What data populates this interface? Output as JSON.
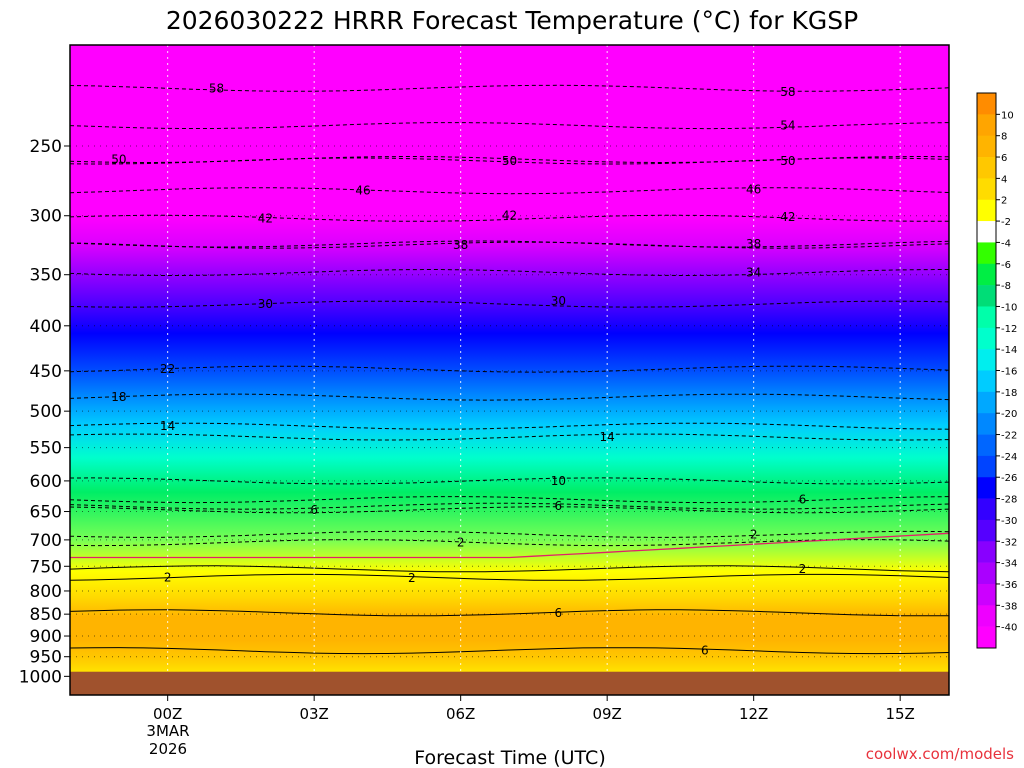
{
  "chart_data": {
    "type": "heatmap",
    "title": "2026030222 HRRR Forecast Temperature (°C) for KGSP",
    "xlabel": "Forecast Time (UTC)",
    "ylabel": "",
    "credit": "coolwx.com/models",
    "x_range_hours": [
      -2,
      16
    ],
    "y_range_hpa": [
      1050,
      192
    ],
    "x_ticks": [
      {
        "h": 0,
        "label": "00Z"
      },
      {
        "h": 3,
        "label": "03Z"
      },
      {
        "h": 6,
        "label": "06Z"
      },
      {
        "h": 9,
        "label": "09Z"
      },
      {
        "h": 12,
        "label": "12Z"
      },
      {
        "h": 15,
        "label": "15Z"
      }
    ],
    "date_label": [
      "3MAR",
      "2026"
    ],
    "y_ticks": [
      250,
      300,
      350,
      400,
      450,
      500,
      550,
      600,
      650,
      700,
      750,
      800,
      850,
      900,
      950,
      1000
    ],
    "ground_hpa": 988,
    "ground_color": "#a0522d",
    "temperature_levels": [
      {
        "p": 195,
        "t": -62
      },
      {
        "p": 215,
        "t": -58
      },
      {
        "p": 235,
        "t": -54
      },
      {
        "p": 258,
        "t": -50
      },
      {
        "p": 280,
        "t": -46
      },
      {
        "p": 300,
        "t": -42
      },
      {
        "p": 323,
        "t": -38
      },
      {
        "p": 348,
        "t": -34
      },
      {
        "p": 375,
        "t": -30
      },
      {
        "p": 408,
        "t": -26
      },
      {
        "p": 445,
        "t": -22
      },
      {
        "p": 480,
        "t": -18
      },
      {
        "p": 518,
        "t": -14
      },
      {
        "p": 565,
        "t": -10
      },
      {
        "p": 618,
        "t": -6
      },
      {
        "p": 700,
        "t": -2
      },
      {
        "p": 760,
        "t": 2
      },
      {
        "p": 815,
        "t": 4
      },
      {
        "p": 855,
        "t": 6
      },
      {
        "p": 910,
        "t": 6
      },
      {
        "p": 950,
        "t": 5
      },
      {
        "p": 975,
        "t": 4
      },
      {
        "p": 1000,
        "t": 3
      },
      {
        "p": 1050,
        "t": 3
      }
    ],
    "contour_labels": [
      {
        "h": 1.0,
        "p": 215,
        "text": "58"
      },
      {
        "h": 12.7,
        "p": 217,
        "text": "58"
      },
      {
        "h": 12.7,
        "p": 237,
        "text": "54"
      },
      {
        "h": -1.0,
        "p": 259,
        "text": "50"
      },
      {
        "h": 7.0,
        "p": 260,
        "text": "50"
      },
      {
        "h": 12.7,
        "p": 260,
        "text": "50"
      },
      {
        "h": 4.0,
        "p": 281,
        "text": "46"
      },
      {
        "h": 12.0,
        "p": 280,
        "text": "46"
      },
      {
        "h": 2.0,
        "p": 302,
        "text": "42"
      },
      {
        "h": 7.0,
        "p": 300,
        "text": "42"
      },
      {
        "h": 12.7,
        "p": 301,
        "text": "42"
      },
      {
        "h": 6.0,
        "p": 324,
        "text": "38"
      },
      {
        "h": 12.0,
        "p": 323,
        "text": "38"
      },
      {
        "h": 12.0,
        "p": 348,
        "text": "34"
      },
      {
        "h": 2.0,
        "p": 378,
        "text": "30"
      },
      {
        "h": 8.0,
        "p": 375,
        "text": "30"
      },
      {
        "h": 0.0,
        "p": 448,
        "text": "22"
      },
      {
        "h": -1.0,
        "p": 482,
        "text": "18"
      },
      {
        "h": 0.0,
        "p": 520,
        "text": "14"
      },
      {
        "h": 9.0,
        "p": 535,
        "text": "14"
      },
      {
        "h": 8.0,
        "p": 600,
        "text": "10"
      },
      {
        "h": 3.0,
        "p": 647,
        "text": "6"
      },
      {
        "h": 8.0,
        "p": 641,
        "text": "6"
      },
      {
        "h": 13.0,
        "p": 630,
        "text": "6"
      },
      {
        "h": 12.0,
        "p": 690,
        "text": "2"
      },
      {
        "h": 6.0,
        "p": 705,
        "text": "2"
      },
      {
        "h": 0.0,
        "p": 772,
        "text": "2"
      },
      {
        "h": 5.0,
        "p": 773,
        "text": "2"
      },
      {
        "h": 13.0,
        "p": 755,
        "text": "2"
      },
      {
        "h": 8.0,
        "p": 847,
        "text": "6"
      },
      {
        "h": 11.0,
        "p": 935,
        "text": "6"
      }
    ],
    "colorbar": {
      "labels": [
        "10",
        "8",
        "6",
        "4",
        "2",
        "-2",
        "-4",
        "-6",
        "-8",
        "-10",
        "-12",
        "-14",
        "-16",
        "-18",
        "-20",
        "-22",
        "-24",
        "-26",
        "-28",
        "-30",
        "-32",
        "-34",
        "-36",
        "-38",
        "-40"
      ],
      "colors": [
        "#ff8c00",
        "#ffa500",
        "#ffb400",
        "#ffc800",
        "#ffdc00",
        "#ffff00",
        "#ffffff",
        "#33ff00",
        "#00ee44",
        "#00dd77",
        "#00ffaa",
        "#00ffcc",
        "#00eeee",
        "#00ccff",
        "#00a8ff",
        "#0088ff",
        "#0066ff",
        "#0044ff",
        "#0000ff",
        "#3300ff",
        "#5500ff",
        "#8800ff",
        "#aa00ff",
        "#cc00ff",
        "#ee00ff",
        "#ff00ff"
      ]
    }
  }
}
